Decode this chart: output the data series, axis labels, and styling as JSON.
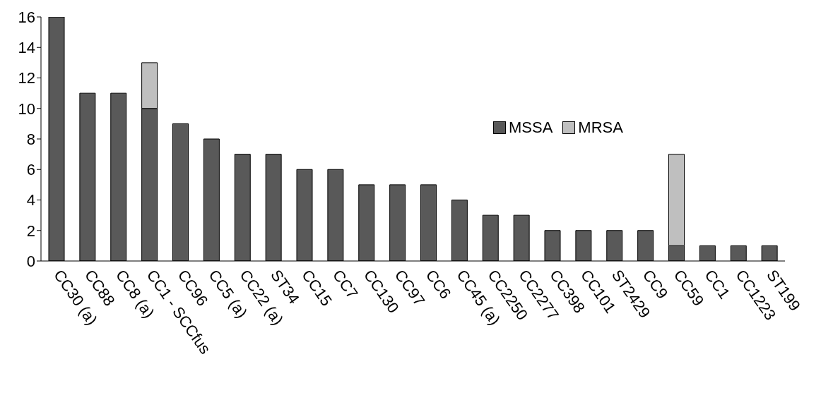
{
  "chart_data": {
    "type": "bar",
    "stacked": true,
    "categories": [
      "CC30 (a)",
      "CC88",
      "CC8 (a)",
      "CC1 - SCCfus",
      "CC96",
      "CC5 (a)",
      "CC22 (a)",
      "ST34",
      "CC15",
      "CC7",
      "CC130",
      "CC97",
      "CC6",
      "CC45 (a)",
      "CC2250",
      "CC2277",
      "CC398",
      "CC101",
      "ST2429",
      "CC9",
      "CC59",
      "CC1",
      "CC1223",
      "ST199"
    ],
    "series": [
      {
        "name": "MSSA",
        "color": "#595959",
        "values": [
          16,
          11,
          11,
          10,
          9,
          8,
          7,
          7,
          6,
          6,
          5,
          5,
          5,
          4,
          3,
          3,
          2,
          2,
          2,
          2,
          1,
          1,
          1,
          1
        ]
      },
      {
        "name": "MRSA",
        "color": "#bfbfbf",
        "values": [
          0,
          0,
          0,
          3,
          0,
          0,
          0,
          0,
          0,
          0,
          0,
          0,
          0,
          0,
          0,
          0,
          0,
          0,
          0,
          0,
          6,
          0,
          0,
          0
        ]
      }
    ],
    "ylim": [
      0,
      16
    ],
    "yticks": [
      0,
      2,
      4,
      6,
      8,
      10,
      12,
      14,
      16
    ],
    "grid": false,
    "legend": "right"
  }
}
